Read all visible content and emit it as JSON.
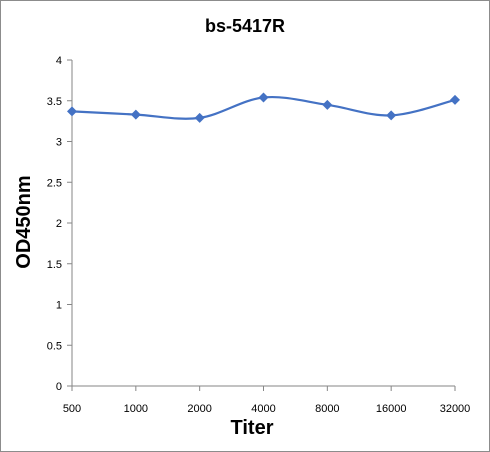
{
  "chart_data": {
    "type": "line",
    "title": "bs-5417R",
    "xlabel": "Titer",
    "ylabel": "OD450nm",
    "categories": [
      "500",
      "1000",
      "2000",
      "4000",
      "8000",
      "16000",
      "32000"
    ],
    "series": [
      {
        "values": [
          3.37,
          3.33,
          3.29,
          3.54,
          3.45,
          3.32,
          3.51
        ],
        "color": "#4472c4"
      }
    ],
    "ylim": [
      0,
      4
    ],
    "yticks": [
      "0",
      "0.5",
      "1",
      "1.5",
      "2",
      "2.5",
      "3",
      "3.5",
      "4"
    ],
    "grid": false,
    "legend": "none",
    "marker": "diamond",
    "smooth": true
  }
}
